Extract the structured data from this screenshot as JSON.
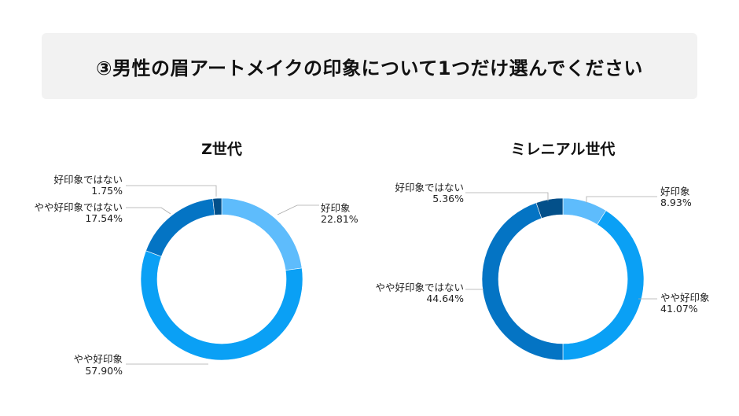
{
  "page": {
    "title": "③男性の眉アートメイクの印象について1つだけ選んでください"
  },
  "chart_data": [
    {
      "type": "pie",
      "title": "Z世代",
      "series": [
        {
          "label": "好印象",
          "value": 22.81,
          "display": "22.81%",
          "color": "#5ebcfc"
        },
        {
          "label": "やや好印象",
          "value": 57.9,
          "display": "57.90%",
          "color": "#0aa0f5"
        },
        {
          "label": "やや好印象ではない",
          "value": 17.54,
          "display": "17.54%",
          "color": "#0474c4"
        },
        {
          "label": "好印象ではない",
          "value": 1.75,
          "display": "1.75%",
          "color": "#03508a"
        }
      ]
    },
    {
      "type": "pie",
      "title": "ミレニアル世代",
      "series": [
        {
          "label": "好印象",
          "value": 8.93,
          "display": "8.93%",
          "color": "#5ebcfc"
        },
        {
          "label": "やや好印象",
          "value": 41.07,
          "display": "41.07%",
          "color": "#0aa0f5"
        },
        {
          "label": "やや好印象ではない",
          "value": 44.64,
          "display": "44.64%",
          "color": "#0474c4"
        },
        {
          "label": "好印象ではない",
          "value": 5.36,
          "display": "5.36%",
          "color": "#03508a"
        }
      ]
    }
  ]
}
